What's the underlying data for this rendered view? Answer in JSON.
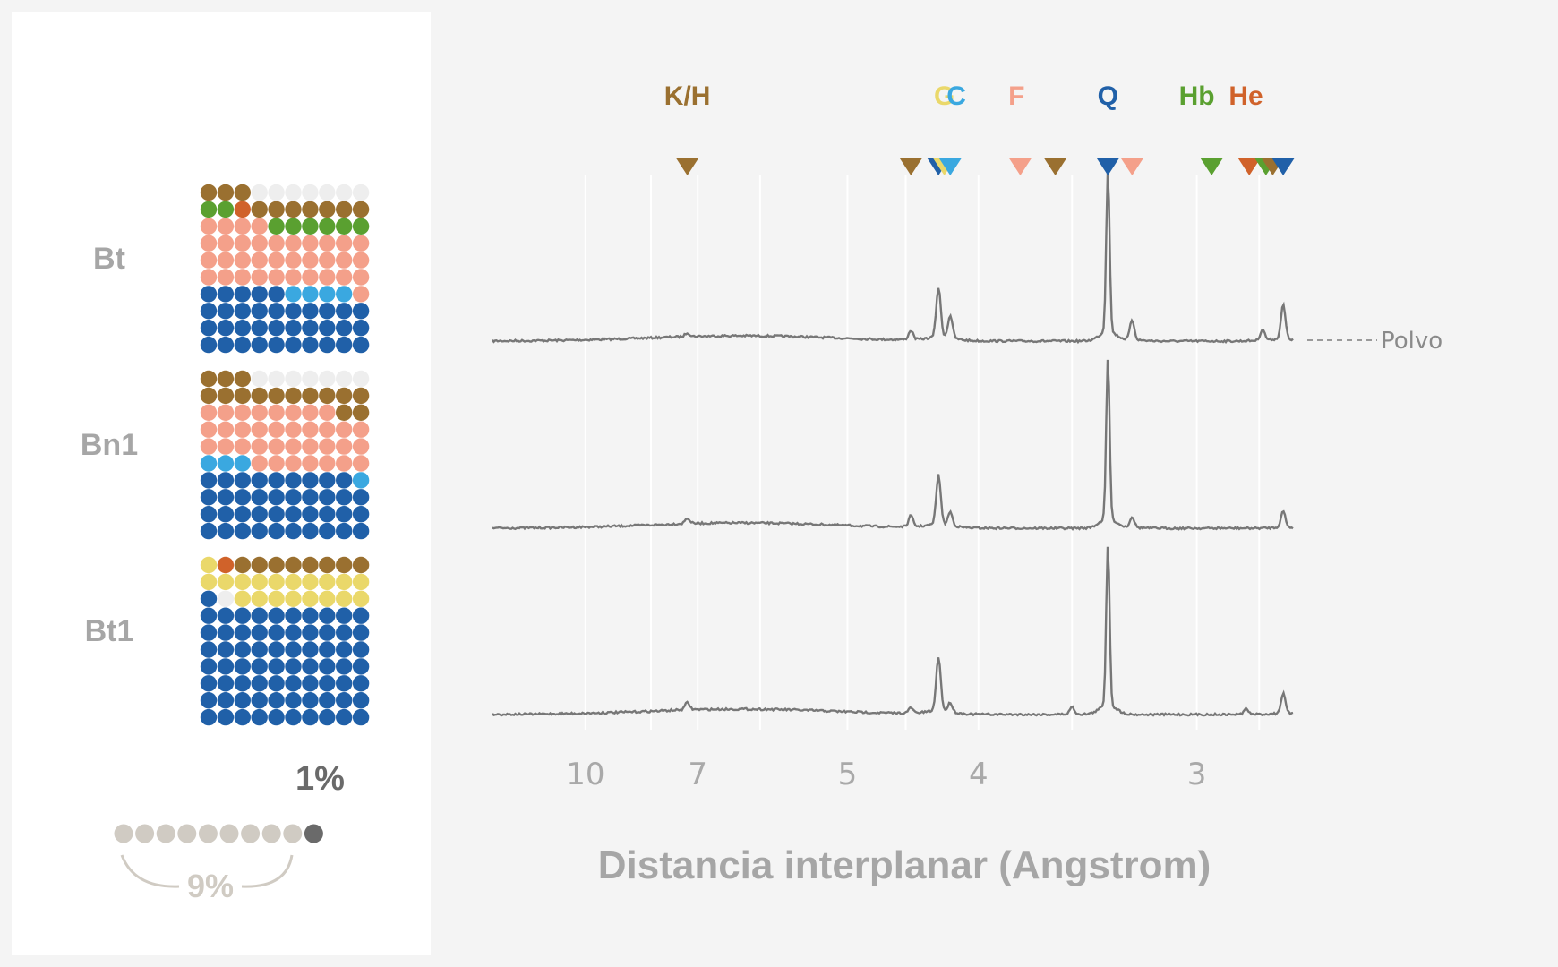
{
  "colors": {
    "Q": "#2060a8",
    "C": "#3aa8e0",
    "G": "#ead86a",
    "F": "#f4a08a",
    "K/H": "#9a7030",
    "Hb": "#5aa030",
    "He": "#d0622a",
    "empty": "#eeeeee",
    "trace": "#777777",
    "grid": "#ffffff",
    "legend_dot": "#d0cbc3",
    "legend_dot_dark": "#6a6a6a"
  },
  "minerals": [
    {
      "code": "K/H",
      "label": "K/H"
    },
    {
      "code": "G",
      "label": "G"
    },
    {
      "code": "C",
      "label": "C"
    },
    {
      "code": "F",
      "label": "F"
    },
    {
      "code": "Q",
      "label": "Q"
    },
    {
      "code": "Hb",
      "label": "Hb"
    },
    {
      "code": "He",
      "label": "He"
    }
  ],
  "waffle": {
    "rows": 10,
    "cols": 10,
    "samples": [
      {
        "name": "Bt",
        "grid": [
          "KKK.......",
          "HHEKKKKKKK",
          "FFFFHHHHHH",
          "FFFFFFFFFF",
          "FFFFFFFFFF",
          "FFFFFFFFFF",
          "QQQQQCCCCF",
          "QQQQQQQQQQ",
          "QQQQQQQQQQ",
          "QQQQQQQQQQ"
        ]
      },
      {
        "name": "Bn1",
        "grid": [
          "KKK.......",
          "KKKKKKKKKK",
          "FFFFFFFFKK",
          "FFFFFFFFFF",
          "FFFFFFFFFF",
          "CCCFFFFFFF",
          "QQQQQQQQQC",
          "QQQQQQQQQQ",
          "QQQQQQQQQQ",
          "QQQQQQQQQQ"
        ]
      },
      {
        "name": "Bt1",
        "grid": [
          "GEKKKKKKKK",
          "GGGGGGGGGG",
          "Q.GGGGGGGG",
          "QQQQQQQQQQ",
          "QQQQQQQQQQ",
          "QQQQQQQQQQ",
          "QQQQQQQQQQ",
          "QQQQQQQQQQ",
          "QQQQQQQQQQ",
          "QQQQQQQQQQ"
        ]
      }
    ]
  },
  "legend": {
    "one_percent": "1%",
    "nine_percent": "9%"
  },
  "chart_data": {
    "type": "line",
    "xlabel": "Distancia interplanar (Angstrom)",
    "x_scale": "reciprocal",
    "xlim": [
      15.5,
      2.7
    ],
    "x_ticks": [
      10,
      7,
      5,
      4,
      3
    ],
    "gridlines_d": [
      10,
      8,
      7,
      6,
      5,
      4.5,
      4,
      3.5,
      3,
      2.8
    ],
    "grid": true,
    "series_label": "Polvo",
    "markers": [
      {
        "d": 7.2,
        "mineral": "K/H"
      },
      {
        "d": 4.46,
        "mineral": "K/H"
      },
      {
        "d": 4.26,
        "mineral": "Q"
      },
      {
        "d": 4.22,
        "mineral": "G"
      },
      {
        "d": 4.18,
        "mineral": "C"
      },
      {
        "d": 3.76,
        "mineral": "F"
      },
      {
        "d": 3.58,
        "mineral": "K/H"
      },
      {
        "d": 3.34,
        "mineral": "Q"
      },
      {
        "d": 3.24,
        "mineral": "F"
      },
      {
        "d": 2.95,
        "mineral": "Hb"
      },
      {
        "d": 2.83,
        "mineral": "He"
      },
      {
        "d": 2.78,
        "mineral": "Hb"
      },
      {
        "d": 2.76,
        "mineral": "K/H"
      },
      {
        "d": 2.73,
        "mineral": "Q"
      }
    ],
    "mineral_label_positions": [
      {
        "label": "K/H",
        "d": 7.2
      },
      {
        "label": "G",
        "d": 4.22
      },
      {
        "label": "C",
        "d": 4.14
      },
      {
        "label": "F",
        "d": 3.78
      },
      {
        "label": "Q",
        "d": 3.34
      },
      {
        "label": "Hb",
        "d": 3.0
      },
      {
        "label": "He",
        "d": 2.84
      }
    ],
    "series": [
      {
        "name": "Bt",
        "peaks": [
          [
            4.26,
            55
          ],
          [
            4.18,
            25
          ],
          [
            3.34,
            180
          ],
          [
            3.24,
            22
          ],
          [
            2.79,
            12
          ],
          [
            2.73,
            38
          ],
          [
            7.2,
            4
          ],
          [
            4.46,
            10
          ]
        ]
      },
      {
        "name": "Bn1",
        "peaks": [
          [
            4.26,
            55
          ],
          [
            4.18,
            15
          ],
          [
            3.34,
            180
          ],
          [
            3.24,
            12
          ],
          [
            2.73,
            18
          ],
          [
            7.2,
            6
          ],
          [
            4.46,
            12
          ]
        ]
      },
      {
        "name": "Bt1",
        "peaks": [
          [
            4.26,
            60
          ],
          [
            4.18,
            10
          ],
          [
            3.34,
            180
          ],
          [
            3.5,
            8
          ],
          [
            2.73,
            22
          ],
          [
            7.2,
            8
          ],
          [
            4.46,
            6
          ],
          [
            2.84,
            6
          ]
        ]
      }
    ]
  }
}
